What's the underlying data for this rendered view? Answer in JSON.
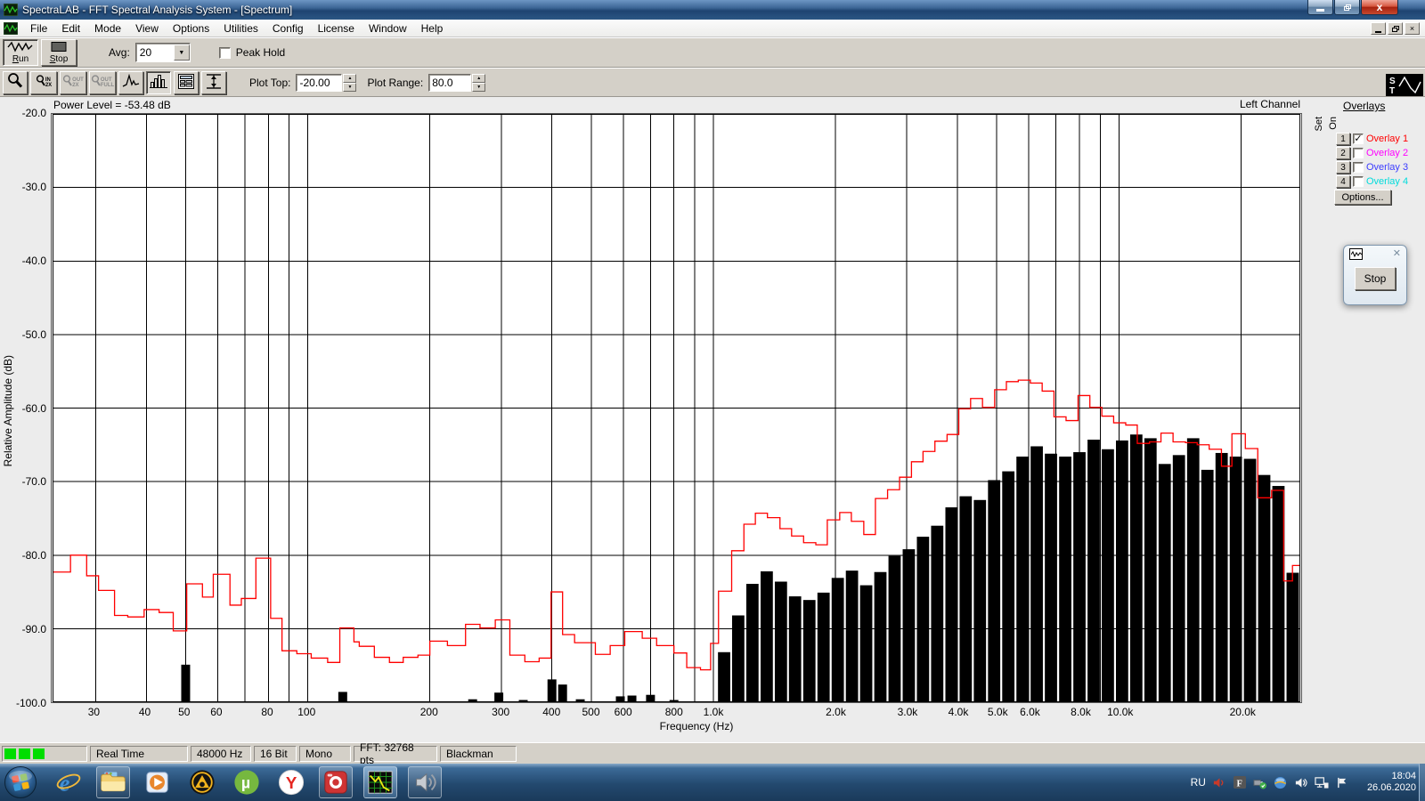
{
  "window": {
    "title": "SpectraLAB - FFT Spectral Analysis System - [Spectrum]"
  },
  "menu": {
    "items": [
      "File",
      "Edit",
      "Mode",
      "View",
      "Options",
      "Utilities",
      "Config",
      "License",
      "Window",
      "Help"
    ]
  },
  "toolbar_main": {
    "run": "Run",
    "stop": "Stop",
    "avg_label": "Avg:",
    "avg_value": "20",
    "peak_hold": "Peak Hold"
  },
  "toolbar_plot": {
    "plot_top_label": "Plot Top:",
    "plot_top_value": "-20.00",
    "plot_range_label": "Plot Range:",
    "plot_range_value": "80.0",
    "buttons": [
      {
        "name": "zoom-icon",
        "caption": "",
        "pressed": false,
        "disabled": false
      },
      {
        "name": "zoom-in-2x-icon",
        "caption": "IN|2X",
        "pressed": false,
        "disabled": false
      },
      {
        "name": "zoom-out-2x-icon",
        "caption": "OUT|2X",
        "pressed": false,
        "disabled": true
      },
      {
        "name": "zoom-out-full-icon",
        "caption": "OUT|FULL",
        "pressed": false,
        "disabled": true
      },
      {
        "name": "peak-curve-icon",
        "caption": "",
        "pressed": false,
        "disabled": false
      },
      {
        "name": "bar-display-icon",
        "caption": "",
        "pressed": true,
        "disabled": false
      },
      {
        "name": "display-options-icon",
        "caption": "",
        "pressed": false,
        "disabled": false
      },
      {
        "name": "vertical-range-icon",
        "caption": "",
        "pressed": false,
        "disabled": false
      }
    ]
  },
  "plot_header": {
    "power_level": "Power Level = -53.48 dB",
    "channel": "Left Channel"
  },
  "overlays_panel": {
    "title": "Overlays",
    "set": "Set",
    "on": "On",
    "options": "Options...",
    "items": [
      {
        "num": "1",
        "label": "Overlay 1",
        "color": "#ff0000",
        "checked": true
      },
      {
        "num": "2",
        "label": "Overlay 2",
        "color": "#ff00ff",
        "checked": false
      },
      {
        "num": "3",
        "label": "Overlay 3",
        "color": "#3c3cff",
        "checked": false
      },
      {
        "num": "4",
        "label": "Overlay 4",
        "color": "#00dcdc",
        "checked": false
      }
    ]
  },
  "mini_window": {
    "stop": "Stop"
  },
  "statusbar": {
    "indicator_color": "#00dd00",
    "panels": [
      "Real Time",
      "48000 Hz",
      "16 Bit",
      "Mono",
      "FFT: 32768 pts",
      "Blackman"
    ]
  },
  "taskbar": {
    "language": "RU",
    "time": "18:04",
    "date": "26.06.2020",
    "apps": [
      {
        "icon": "ie-icon",
        "framed": false,
        "active": false
      },
      {
        "icon": "explorer-folder-icon",
        "framed": true,
        "active": false
      },
      {
        "icon": "wmp-icon",
        "framed": false,
        "active": false
      },
      {
        "icon": "aimp-icon",
        "framed": false,
        "active": false
      },
      {
        "icon": "utorrent-icon",
        "framed": false,
        "active": false
      },
      {
        "icon": "yandex-icon",
        "framed": false,
        "active": false
      },
      {
        "icon": "recorder-icon",
        "framed": true,
        "active": false
      },
      {
        "icon": "spectralab-icon",
        "framed": true,
        "active": true
      },
      {
        "icon": "speaker-app-icon",
        "framed": true,
        "active": false
      }
    ],
    "tray_icons": [
      "volume-red-icon",
      "font-icon",
      "usb-icon",
      "network-orb-icon",
      "volume-icon",
      "network-icon",
      "flag-icon"
    ]
  },
  "chart_data": {
    "type": "bar",
    "title": "Spectrum",
    "xlabel": "Frequency (Hz)",
    "ylabel": "Relative Amplitude (dB)",
    "x_scale": "log",
    "x_range": [
      23.5,
      28000
    ],
    "y_range": [
      -100,
      -20
    ],
    "grid": true,
    "y_ticks": [
      {
        "v": -20,
        "label": "-20.0"
      },
      {
        "v": -30,
        "label": "-30.0"
      },
      {
        "v": -40,
        "label": "-40.0"
      },
      {
        "v": -50,
        "label": "-50.0"
      },
      {
        "v": -60,
        "label": "-60.0"
      },
      {
        "v": -70,
        "label": "-70.0"
      },
      {
        "v": -80,
        "label": "-80.0"
      },
      {
        "v": -90,
        "label": "-90.0"
      },
      {
        "v": -100,
        "label": "-100.0"
      }
    ],
    "x_ticks": [
      {
        "f": 30,
        "label": "30"
      },
      {
        "f": 40,
        "label": "40"
      },
      {
        "f": 50,
        "label": "50"
      },
      {
        "f": 60,
        "label": "60"
      },
      {
        "f": 80,
        "label": "80"
      },
      {
        "f": 100,
        "label": "100"
      },
      {
        "f": 200,
        "label": "200"
      },
      {
        "f": 300,
        "label": "300"
      },
      {
        "f": 400,
        "label": "400"
      },
      {
        "f": 500,
        "label": "500"
      },
      {
        "f": 600,
        "label": "600"
      },
      {
        "f": 800,
        "label": "800"
      },
      {
        "f": 1000,
        "label": "1.0k"
      },
      {
        "f": 2000,
        "label": "2.0k"
      },
      {
        "f": 3000,
        "label": "3.0k"
      },
      {
        "f": 4000,
        "label": "4.0k"
      },
      {
        "f": 5000,
        "label": "5.0k"
      },
      {
        "f": 6000,
        "label": "6.0k"
      },
      {
        "f": 8000,
        "label": "8.0k"
      },
      {
        "f": 10000,
        "label": "10.0k"
      },
      {
        "f": 20000,
        "label": "20.0k"
      }
    ],
    "grid_freqs": [
      30,
      40,
      50,
      60,
      70,
      80,
      90,
      100,
      200,
      300,
      400,
      500,
      600,
      700,
      800,
      900,
      1000,
      2000,
      3000,
      4000,
      5000,
      6000,
      7000,
      8000,
      9000,
      10000,
      20000
    ],
    "series": [
      {
        "name": "Left Channel spectrum",
        "type": "bar",
        "color": "#000000",
        "points": [
          [
            50,
            -94.9
          ],
          [
            122,
            -98.6
          ],
          [
            255,
            -99.6
          ],
          [
            296,
            -98.7
          ],
          [
            340,
            -99.7
          ],
          [
            400,
            -96.9
          ],
          [
            425,
            -97.6
          ],
          [
            470,
            -99.6
          ],
          [
            590,
            -99.2
          ],
          [
            630,
            -99.1
          ],
          [
            700,
            -99.0
          ],
          [
            800,
            -99.7
          ],
          [
            1063,
            -93.2
          ],
          [
            1152,
            -88.2
          ],
          [
            1249,
            -83.9
          ],
          [
            1354,
            -82.2
          ],
          [
            1468,
            -83.6
          ],
          [
            1591,
            -85.6
          ],
          [
            1725,
            -86.1
          ],
          [
            1870,
            -85.1
          ],
          [
            2027,
            -83.1
          ],
          [
            2197,
            -82.1
          ],
          [
            2382,
            -84.1
          ],
          [
            2582,
            -82.3
          ],
          [
            2799,
            -80.1
          ],
          [
            3034,
            -79.2
          ],
          [
            3289,
            -77.5
          ],
          [
            3566,
            -76.0
          ],
          [
            3866,
            -73.5
          ],
          [
            4191,
            -72.0
          ],
          [
            4543,
            -72.5
          ],
          [
            4925,
            -69.8
          ],
          [
            5339,
            -68.6
          ],
          [
            5788,
            -66.6
          ],
          [
            6275,
            -65.2
          ],
          [
            6802,
            -66.2
          ],
          [
            7374,
            -66.6
          ],
          [
            7994,
            -66.0
          ],
          [
            8666,
            -64.3
          ],
          [
            9394,
            -65.6
          ],
          [
            10184,
            -64.4
          ],
          [
            11040,
            -63.6
          ],
          [
            11968,
            -64.1
          ],
          [
            12974,
            -67.6
          ],
          [
            14065,
            -66.4
          ],
          [
            15247,
            -64.1
          ],
          [
            16529,
            -68.4
          ],
          [
            17918,
            -66.1
          ],
          [
            19424,
            -66.6
          ],
          [
            21057,
            -66.9
          ],
          [
            22827,
            -69.1
          ],
          [
            24746,
            -70.6
          ],
          [
            26826,
            -82.4
          ]
        ]
      },
      {
        "name": "Overlay 1",
        "type": "step-line",
        "color": "#ff0000",
        "points": [
          [
            23.5,
            -82.3
          ],
          [
            26,
            -80.0
          ],
          [
            28.5,
            -82.8
          ],
          [
            30.5,
            -84.8
          ],
          [
            33.4,
            -88.2
          ],
          [
            36,
            -88.4
          ],
          [
            39.5,
            -87.4
          ],
          [
            43,
            -87.8
          ],
          [
            46.6,
            -90.3
          ],
          [
            50.3,
            -83.9
          ],
          [
            55,
            -85.7
          ],
          [
            58.5,
            -82.6
          ],
          [
            64.3,
            -86.8
          ],
          [
            68.6,
            -85.9
          ],
          [
            74.5,
            -80.4
          ],
          [
            81,
            -88.6
          ],
          [
            86.4,
            -93.0
          ],
          [
            94,
            -93.4
          ],
          [
            102,
            -94.0
          ],
          [
            112,
            -94.6
          ],
          [
            120,
            -89.9
          ],
          [
            130,
            -91.8
          ],
          [
            134,
            -92.4
          ],
          [
            146,
            -93.9
          ],
          [
            159,
            -94.6
          ],
          [
            172,
            -93.9
          ],
          [
            187,
            -93.6
          ],
          [
            200,
            -91.7
          ],
          [
            221,
            -92.3
          ],
          [
            245,
            -89.4
          ],
          [
            266,
            -89.9
          ],
          [
            290,
            -88.8
          ],
          [
            315,
            -93.6
          ],
          [
            343,
            -94.5
          ],
          [
            372,
            -94.0
          ],
          [
            398,
            -85.0
          ],
          [
            425,
            -90.8
          ],
          [
            455,
            -91.9
          ],
          [
            512,
            -93.5
          ],
          [
            557,
            -92.3
          ],
          [
            605,
            -90.4
          ],
          [
            668,
            -91.3
          ],
          [
            725,
            -92.3
          ],
          [
            800,
            -93.3
          ],
          [
            860,
            -95.3
          ],
          [
            930,
            -95.6
          ],
          [
            985,
            -92.0
          ],
          [
            1030,
            -84.9
          ],
          [
            1110,
            -79.4
          ],
          [
            1190,
            -75.8
          ],
          [
            1270,
            -74.3
          ],
          [
            1360,
            -74.9
          ],
          [
            1460,
            -76.4
          ],
          [
            1560,
            -77.4
          ],
          [
            1670,
            -78.3
          ],
          [
            1790,
            -78.6
          ],
          [
            1910,
            -75.2
          ],
          [
            2050,
            -74.2
          ],
          [
            2190,
            -75.4
          ],
          [
            2350,
            -77.2
          ],
          [
            2510,
            -72.3
          ],
          [
            2690,
            -71.1
          ],
          [
            2880,
            -69.4
          ],
          [
            3080,
            -67.3
          ],
          [
            3290,
            -65.9
          ],
          [
            3520,
            -64.5
          ],
          [
            3770,
            -63.6
          ],
          [
            4030,
            -60.1
          ],
          [
            4310,
            -58.7
          ],
          [
            4610,
            -59.9
          ],
          [
            4940,
            -57.5
          ],
          [
            5280,
            -56.4
          ],
          [
            5650,
            -56.2
          ],
          [
            6050,
            -56.6
          ],
          [
            6470,
            -57.7
          ],
          [
            6920,
            -61.2
          ],
          [
            7410,
            -61.7
          ],
          [
            7930,
            -58.3
          ],
          [
            8480,
            -59.9
          ],
          [
            9080,
            -61.1
          ],
          [
            9710,
            -62.0
          ],
          [
            10400,
            -62.3
          ],
          [
            11100,
            -64.8
          ],
          [
            11900,
            -64.6
          ],
          [
            12700,
            -63.4
          ],
          [
            13600,
            -64.6
          ],
          [
            14600,
            -64.7
          ],
          [
            15600,
            -65.0
          ],
          [
            16700,
            -65.6
          ],
          [
            17900,
            -67.9
          ],
          [
            19000,
            -63.5
          ],
          [
            20500,
            -65.5
          ],
          [
            22000,
            -72.2
          ],
          [
            23800,
            -71.2
          ],
          [
            25500,
            -83.5
          ],
          [
            26800,
            -81.4
          ]
        ]
      }
    ]
  }
}
